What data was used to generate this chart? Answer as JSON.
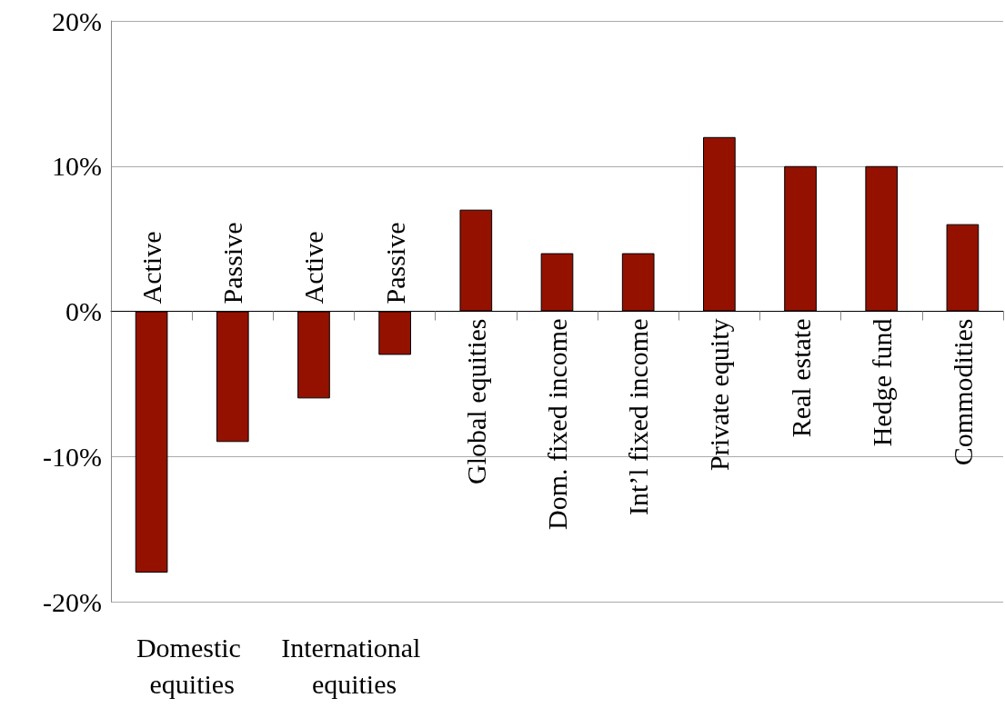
{
  "chart_data": {
    "type": "bar",
    "categories": [
      "Active",
      "Passive",
      "Active",
      "Passive",
      "Global equities",
      "Dom. fixed income",
      "Int’l fixed income",
      "Private equity",
      "Real estate",
      "Hedge fund",
      "Commodities"
    ],
    "values": [
      -18,
      -9,
      -6,
      -3,
      7,
      4,
      4,
      12,
      10,
      10,
      6
    ],
    "color": "#941100",
    "ylim": [
      -20,
      20
    ],
    "yticks": [
      {
        "value": -20,
        "label": "-20%"
      },
      {
        "value": -10,
        "label": "-10%"
      },
      {
        "value": 0,
        "label": "0%"
      },
      {
        "value": 10,
        "label": "10%"
      },
      {
        "value": 20,
        "label": "20%"
      }
    ],
    "grid": "y",
    "annotations": [
      "Domestic equities",
      "International equities"
    ]
  }
}
